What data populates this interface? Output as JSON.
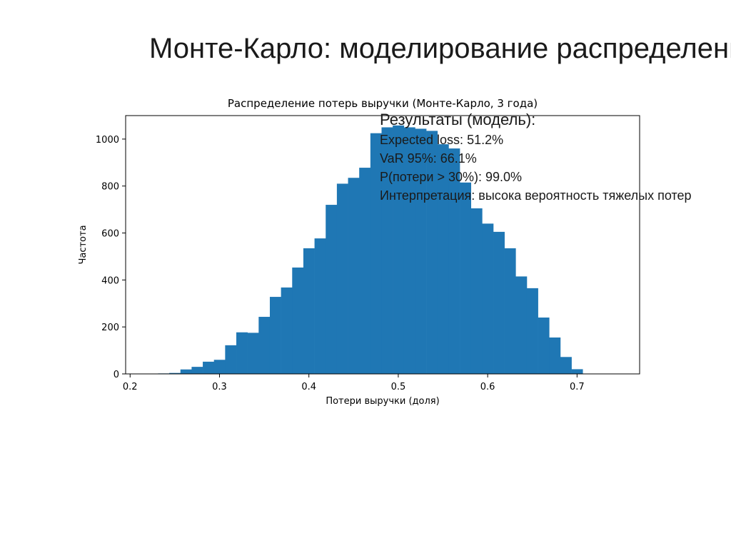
{
  "slide": {
    "title": "Монте-Карло: моделирование распределени"
  },
  "results": {
    "heading": "Результаты (модель):",
    "expected_loss": "Expected loss: 51.2%",
    "var95": "VaR 95%: 66.1%",
    "prob_over_30": "P(потери > 30%): 99.0%",
    "interpretation": "Интерпретация: высока вероятность тяжелых потер"
  },
  "colors": {
    "bar": "#1f77b4"
  },
  "chart_data": {
    "type": "bar",
    "title": "Распределение потерь выручки (Монте-Карло, 3 года)",
    "xlabel": "Потери выручки (доля)",
    "ylabel": "Частота",
    "xlim": [
      0.195,
      0.77
    ],
    "ylim": [
      0,
      1100
    ],
    "xticks": [
      0.2,
      0.3,
      0.4,
      0.5,
      0.6,
      0.7
    ],
    "xtick_labels": [
      "0.2",
      "0.3",
      "0.4",
      "0.5",
      "0.6",
      "0.7"
    ],
    "yticks": [
      0,
      200,
      400,
      600,
      800,
      1000
    ],
    "ytick_labels": [
      "0",
      "200",
      "400",
      "600",
      "800",
      "1000"
    ],
    "bin_start": 0.2188,
    "bin_width": 0.0125,
    "values": [
      1,
      2,
      4,
      19,
      30,
      52,
      60,
      122,
      177,
      175,
      243,
      328,
      368,
      453,
      535,
      577,
      720,
      810,
      835,
      878,
      1025,
      1050,
      1058,
      1050,
      1044,
      1035,
      978,
      960,
      815,
      705,
      640,
      605,
      535,
      415,
      365,
      240,
      155,
      72,
      20
    ]
  }
}
